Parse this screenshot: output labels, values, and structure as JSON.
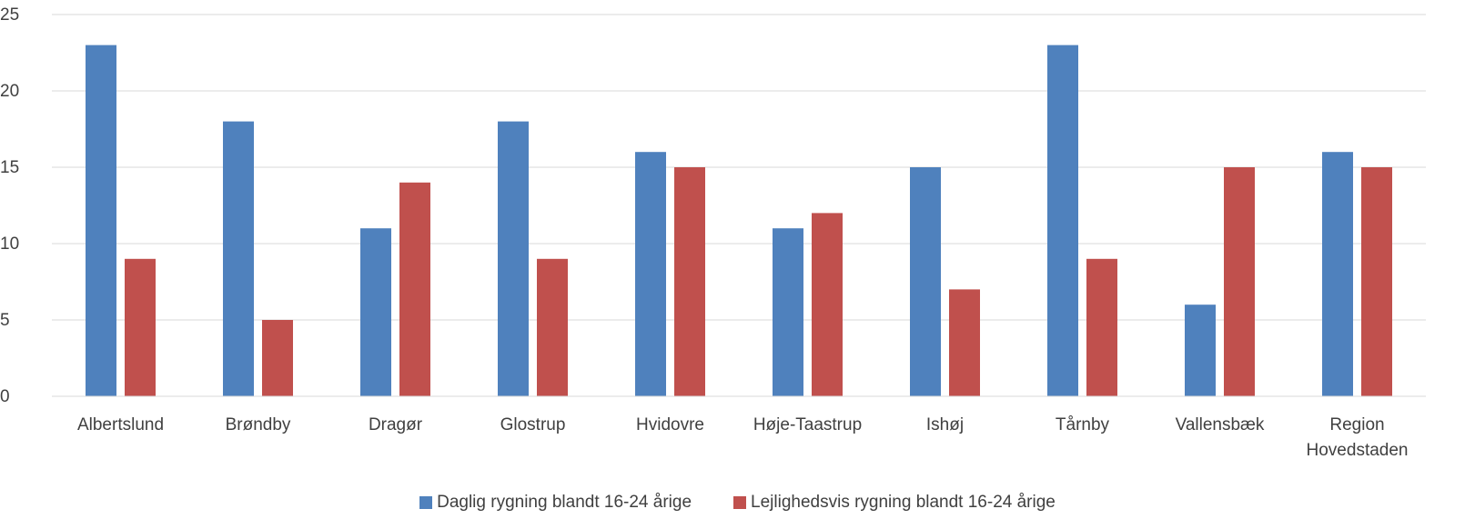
{
  "chart_data": {
    "type": "bar",
    "title": "",
    "xlabel": "",
    "ylabel": "",
    "categories": [
      [
        "Albertslund"
      ],
      [
        "Brøndby"
      ],
      [
        "Dragør"
      ],
      [
        "Glostrup"
      ],
      [
        "Hvidovre"
      ],
      [
        "Høje-Taastrup"
      ],
      [
        "Ishøj"
      ],
      [
        "Tårnby"
      ],
      [
        "Vallensbæk"
      ],
      [
        "Region",
        "Hovedstaden"
      ]
    ],
    "series": [
      {
        "name": "Daglig rygning blandt 16-24 årige",
        "color": "#4f81bd",
        "values": [
          23,
          18,
          11,
          18,
          16,
          11,
          15,
          23,
          6,
          16
        ]
      },
      {
        "name": "Lejlighedsvis rygning blandt 16-24 årige",
        "color": "#c0504d",
        "values": [
          9,
          5,
          14,
          9,
          15,
          12,
          7,
          9,
          15,
          15
        ]
      }
    ],
    "ylim": [
      0,
      25
    ],
    "yticks": [
      0,
      5,
      10,
      15,
      20,
      25
    ],
    "grid": true,
    "gridColor": "#d9d9d9",
    "legend_position": "bottom-center"
  }
}
